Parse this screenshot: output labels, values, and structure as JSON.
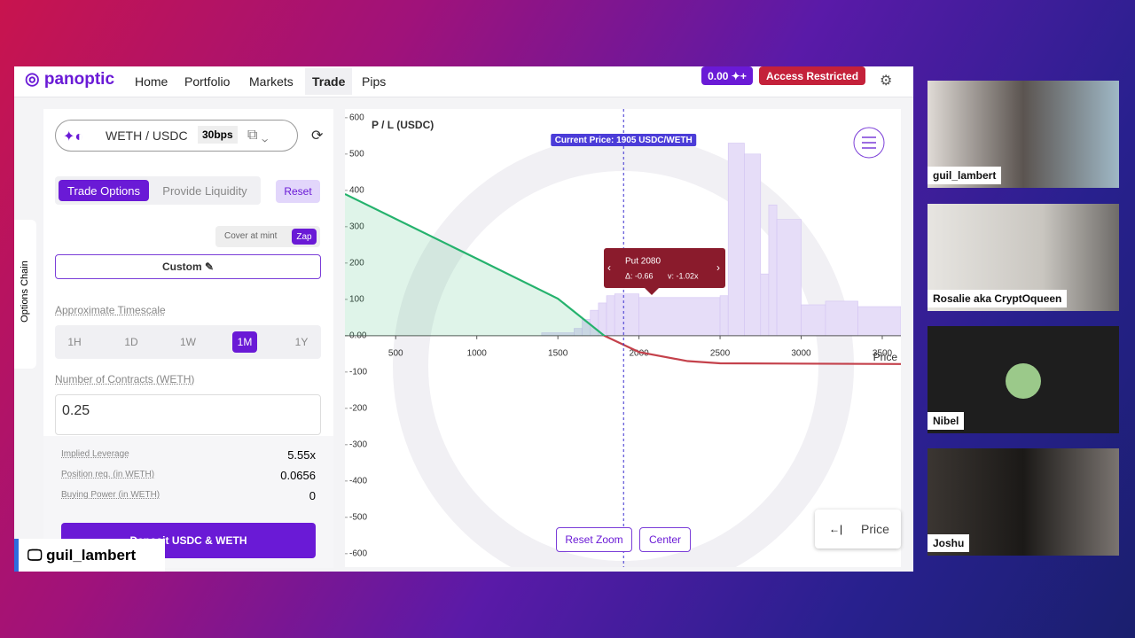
{
  "nav": {
    "logo": "panoptic",
    "links": [
      "Home",
      "Portfolio",
      "Markets",
      "Trade",
      "Pips"
    ],
    "balance": "0.00 ✦+",
    "status": "Access Restricted"
  },
  "side_tab": "Options Chain",
  "trade_panel": {
    "pair": "WETH / USDC",
    "fee": "30bps",
    "tabs": [
      "Trade Options",
      "Provide Liquidity"
    ],
    "reset": "Reset",
    "cover": "Cover at mint",
    "zap": "Zap",
    "custom": "Custom",
    "timescale_label": "Approximate Timescale",
    "timescales": [
      "1H",
      "1D",
      "1W",
      "1M",
      "1Y"
    ],
    "contracts_label": "Number of Contracts (WETH)",
    "contracts": "0.25",
    "stats": [
      [
        "Implied Leverage",
        "5.55x"
      ],
      [
        "Position req. (in WETH)",
        "0.0656"
      ],
      [
        "Buying Power (in WETH)",
        "0"
      ]
    ],
    "deposit": "Deposit USDC & WETH"
  },
  "chart_data": {
    "type": "line",
    "y_label": "P / L (USDC)",
    "x_label": "Price",
    "xlim": [
      187,
      3615
    ],
    "ylim": [
      -637,
      624
    ],
    "xticks": [
      500,
      1000,
      1500,
      2000,
      2500,
      3000,
      3500
    ],
    "yticks": [
      600,
      500,
      400,
      300,
      200,
      100,
      {
        "value": 0,
        "label": "0.00"
      },
      -100,
      -200,
      -300,
      -400,
      -500,
      -600
    ],
    "series": [
      {
        "color": "#25b26d",
        "negative_color": "#c4414b",
        "x": [
          187,
          1000,
          1500,
          1786,
          2000,
          2300,
          2500,
          3615
        ],
        "values": [
          390,
          212,
          102,
          0,
          -45,
          -70,
          -76,
          -78
        ]
      }
    ],
    "histogram": {
      "color": "#e6ddf8",
      "bins": [
        1400,
        1600,
        1650,
        1700,
        1750,
        1800,
        1850,
        2000,
        2500,
        2550,
        2650,
        2750,
        2800,
        2850,
        3000,
        3150,
        3350,
        3615
      ],
      "values": [
        8,
        20,
        45,
        70,
        90,
        110,
        115,
        105,
        110,
        530,
        500,
        170,
        360,
        320,
        85,
        95,
        80
      ]
    },
    "current_price": {
      "value": 1905,
      "label": "Current Price: 1905 USDC/WETH"
    },
    "tooltip": {
      "title": "Put 2080",
      "delta": "Δ: -0.66",
      "value": "v: -1.02x"
    }
  },
  "chart_controls": {
    "reset_zoom": "Reset Zoom",
    "center": "Center",
    "axis_toggle_icon": "←|",
    "axis_toggle": "Price"
  },
  "participants": [
    "guil_lambert",
    "Rosalie aka CryptOqueen",
    "Nibel",
    "Joshu"
  ],
  "presenter": "guil_lambert"
}
